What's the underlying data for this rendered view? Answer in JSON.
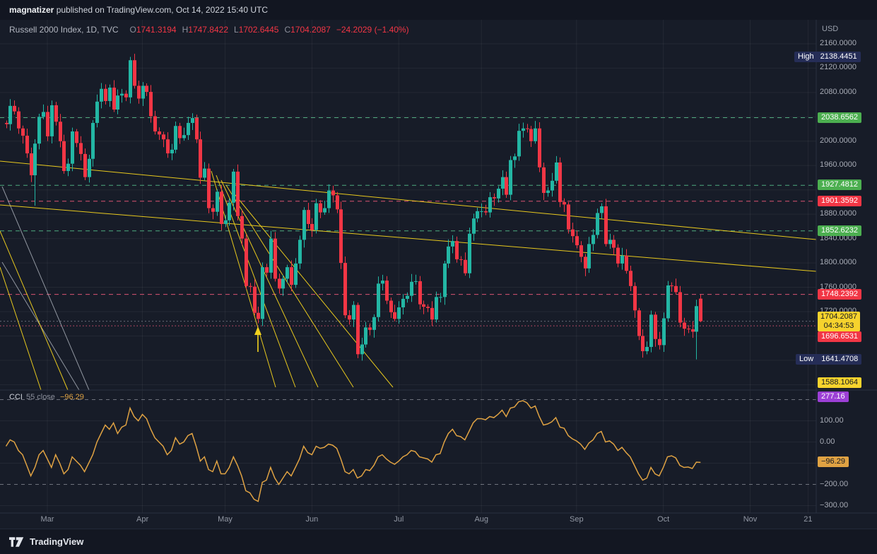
{
  "attribution": {
    "user": "magnatizer",
    "rest": " published on TradingView.com, Oct 14, 2022 15:40 UTC"
  },
  "header": {
    "title": "Russell 2000 Index, 1D, TVC",
    "ohlc": [
      {
        "k": "O",
        "v": "1741.3194"
      },
      {
        "k": "H",
        "v": "1747.8422"
      },
      {
        "k": "L",
        "v": "1702.6445"
      },
      {
        "k": "C",
        "v": "1704.2087"
      }
    ],
    "change": "−24.2029 (−1.40%)"
  },
  "axis": {
    "currency": "USD",
    "price_ticks": [
      2160,
      2120,
      2080,
      2000,
      1960,
      1880,
      1840,
      1800,
      1760,
      1720
    ],
    "grid_prices": [
      2160,
      2120,
      2080,
      2040,
      2000,
      1960,
      1920,
      1880,
      1840,
      1800,
      1760,
      1720,
      1680,
      1640,
      1600
    ],
    "cci_ticks": [
      {
        "v": 100,
        "label": "100.00"
      },
      {
        "v": 0,
        "label": "0.00"
      },
      {
        "v": -200,
        "label": "−200.00"
      },
      {
        "v": -300,
        "label": "−300.00"
      }
    ],
    "time_ticks": [
      {
        "label": "Mar",
        "i": 10
      },
      {
        "label": "Apr",
        "i": 33
      },
      {
        "label": "May",
        "i": 53
      },
      {
        "label": "Jun",
        "i": 74
      },
      {
        "label": "Jul",
        "i": 95
      },
      {
        "label": "Aug",
        "i": 115
      },
      {
        "label": "Sep",
        "i": 138
      },
      {
        "label": "Oct",
        "i": 159
      },
      {
        "label": "Nov",
        "i": 180
      },
      {
        "label": "21",
        "i": 194
      }
    ]
  },
  "markers": {
    "high": {
      "label": "High",
      "value": "2138.4451",
      "price": 2138.4451
    },
    "low": {
      "label": "Low",
      "value": "1641.4708",
      "price": 1641.4708
    },
    "last": {
      "value": "1704.2087",
      "countdown": "04:34:53",
      "price": 1704.2087
    }
  },
  "levels": [
    {
      "price": 2038.6562,
      "label": "2038.6562",
      "type": "green",
      "dash": "dashed"
    },
    {
      "price": 1927.4812,
      "label": "1927.4812",
      "type": "green",
      "dash": "dashed"
    },
    {
      "price": 1901.3592,
      "label": "1901.3592",
      "type": "red",
      "dash": "dashed"
    },
    {
      "price": 1852.6232,
      "label": "1852.6232",
      "type": "green",
      "dash": "dashed"
    },
    {
      "price": 1748.2392,
      "label": "1748.2392",
      "type": "red",
      "dash": "dashed"
    },
    {
      "price": 1696.6531,
      "label": "1696.6531",
      "type": "red",
      "dash": "dotted",
      "dy": 16
    },
    {
      "price": 1588.1064,
      "label": "1588.1064",
      "type": "yellow",
      "dash": "dashed",
      "clamp": true
    }
  ],
  "cci": {
    "name": "CCI",
    "params": "55 close",
    "value": "−96.29",
    "value_num": -96.29,
    "bands": [
      200,
      -200
    ],
    "hline": {
      "label": "277.16",
      "value": 277.16
    }
  },
  "drawings": {
    "yellow": [
      [
        0,
        200,
        1155,
        311
      ],
      [
        0,
        262,
        1155,
        356
      ],
      [
        299,
        214,
        390,
        520
      ],
      [
        306,
        220,
        418,
        520
      ],
      [
        313,
        227,
        450,
        520
      ],
      [
        320,
        234,
        500,
        520
      ],
      [
        328,
        242,
        556,
        520
      ],
      [
        0,
        299,
        96,
        524
      ],
      [
        0,
        350,
        58,
        524
      ]
    ],
    "gray": [
      [
        3,
        236,
        126,
        524
      ],
      [
        3,
        343,
        112,
        524
      ]
    ],
    "arrow": {
      "x": 365,
      "tip": 434,
      "tail": 470
    }
  },
  "colors": {
    "bg": "#171C28",
    "grid": "rgba(255,255,255,0.055)",
    "divider": "#2A3140",
    "up": "#23B6A4",
    "down": "#F23645",
    "trend": "#F2D21E",
    "gray_line": "#A6ABB5",
    "green": "#4CAF50",
    "green_line": "#55B987",
    "red": "#F23645",
    "red_line": "#EF5B7B",
    "yellow": "#F6D32D",
    "purple": "#9C3FD6",
    "orange": "#DFA243",
    "navy": "#252D57"
  },
  "footer": {
    "brand": "TradingView"
  },
  "chart_data": [
    {
      "type": "candlestick",
      "title": "Russell 2000 Index, 1D, TVC",
      "x_range": "Feb 14 2022 – Oct 14 2022, daily",
      "ylim": [
        1580,
        2185
      ],
      "closes": [
        2028,
        2058,
        2049,
        2021,
        2009,
        1980,
        1944,
        1996,
        2040,
        2048,
        2008,
        2059,
        2032,
        2000,
        1951,
        1963,
        2016,
        1997,
        1979,
        1941,
        1971,
        2030,
        2065,
        2086,
        2066,
        2088,
        2052,
        2075,
        2078,
        2072,
        2133,
        2091,
        2070,
        2091,
        2081,
        2041,
        2016,
        2011,
        2003,
        1980,
        1986,
        2025,
        2005,
        2010,
        2030,
        2038,
        2003,
        1940,
        1955,
        1890,
        1884,
        1917,
        1864,
        1870,
        1899,
        1950,
        1877,
        1840,
        1762,
        1761,
        1718,
        1708,
        1793,
        1784,
        1840,
        1774,
        1758,
        1774,
        1793,
        1764,
        1799,
        1838,
        1887,
        1864,
        1854,
        1898,
        1883,
        1890,
        1919,
        1911,
        1888,
        1800,
        1714,
        1707,
        1731,
        1650,
        1666,
        1694,
        1690,
        1711,
        1766,
        1771,
        1738,
        1719,
        1708,
        1727,
        1741,
        1746,
        1769,
        1770,
        1732,
        1728,
        1726,
        1707,
        1744,
        1744,
        1799,
        1827,
        1836,
        1806,
        1805,
        1783,
        1848,
        1873,
        1885,
        1885,
        1883,
        1908,
        1906,
        1922,
        1941,
        1912,
        1969,
        1975,
        2017,
        2021,
        2020,
        2000,
        2021,
        1957,
        1915,
        1919,
        1935,
        1965,
        1900,
        1896,
        1855,
        1844,
        1829,
        1810,
        1791,
        1831,
        1846,
        1882,
        1893,
        1831,
        1838,
        1825,
        1799,
        1812,
        1787,
        1762,
        1722,
        1680,
        1655,
        1662,
        1715,
        1675,
        1665,
        1709,
        1763,
        1762,
        1752,
        1702,
        1692,
        1691,
        1687,
        1729,
        1704.21
      ],
      "open_overrides": {
        "0": 2030,
        "168": 1741.3194
      },
      "high_overrides": {
        "30": 2138.4451,
        "168": 1747.8422
      },
      "low_overrides": {
        "7": 1894,
        "61": 1700.8,
        "85": 1643.5,
        "167": 1641.4708,
        "168": 1702.6445
      }
    },
    {
      "type": "line",
      "name": "CCI (55, close)",
      "ylim": [
        -430,
        230
      ],
      "bands": [
        200,
        -200
      ],
      "values": [
        -20,
        10,
        0,
        -40,
        -60,
        -110,
        -160,
        -120,
        -60,
        -40,
        -80,
        -120,
        -60,
        -100,
        -150,
        -130,
        -70,
        -90,
        -110,
        -140,
        -100,
        -60,
        0,
        40,
        80,
        60,
        90,
        40,
        70,
        80,
        160,
        120,
        100,
        130,
        110,
        60,
        20,
        0,
        -20,
        -60,
        -40,
        20,
        -10,
        0,
        30,
        40,
        -20,
        -90,
        -70,
        -130,
        -140,
        -90,
        -150,
        -150,
        -120,
        -70,
        -110,
        -160,
        -230,
        -240,
        -270,
        -280,
        -190,
        -180,
        -120,
        -170,
        -200,
        -170,
        -140,
        -160,
        -120,
        -80,
        -20,
        -50,
        -60,
        -20,
        -30,
        -25,
        -10,
        -15,
        -30,
        -80,
        -140,
        -150,
        -130,
        -170,
        -160,
        -130,
        -135,
        -110,
        -70,
        -60,
        -80,
        -95,
        -105,
        -90,
        -70,
        -60,
        -40,
        -45,
        -70,
        -75,
        -80,
        -95,
        -60,
        -55,
        0,
        40,
        60,
        30,
        25,
        10,
        50,
        90,
        110,
        110,
        105,
        120,
        115,
        130,
        150,
        120,
        160,
        165,
        190,
        195,
        185,
        160,
        170,
        120,
        80,
        85,
        95,
        115,
        70,
        65,
        30,
        15,
        5,
        -10,
        -35,
        -5,
        10,
        40,
        50,
        0,
        5,
        -10,
        -40,
        -25,
        -50,
        -70,
        -110,
        -150,
        -180,
        -170,
        -120,
        -150,
        -160,
        -120,
        -70,
        -65,
        -75,
        -110,
        -120,
        -118,
        -125,
        -95,
        -96.29
      ]
    }
  ]
}
